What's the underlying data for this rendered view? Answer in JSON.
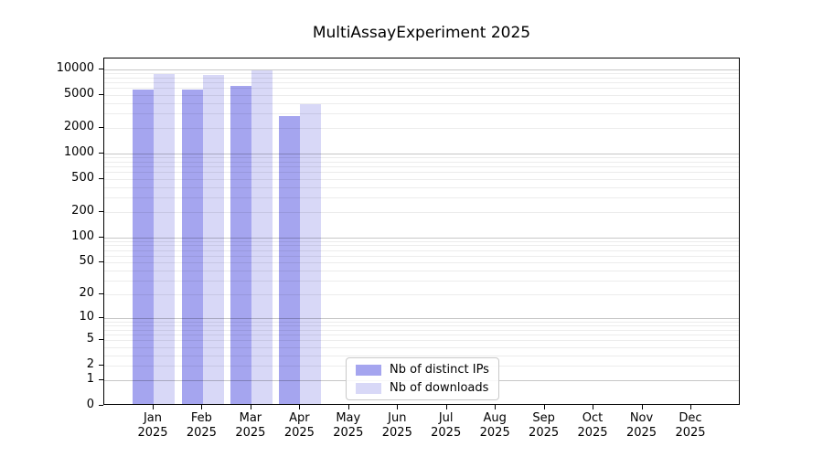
{
  "chart_data": {
    "type": "bar",
    "title": "MultiAssayExperiment 2025",
    "categories": [
      "Jan",
      "Feb",
      "Mar",
      "Apr",
      "May",
      "Jun",
      "Jul",
      "Aug",
      "Sep",
      "Oct",
      "Nov",
      "Dec"
    ],
    "x_tick_second_line": "2025",
    "series": [
      {
        "name": "Nb of distinct IPs",
        "color": "#a5a5ef",
        "values": [
          5500,
          5500,
          6100,
          2650,
          null,
          null,
          null,
          null,
          null,
          null,
          null,
          null
        ]
      },
      {
        "name": "Nb of downloads",
        "color": "#d8d8f7",
        "values": [
          8300,
          8100,
          9400,
          3700,
          null,
          null,
          null,
          null,
          null,
          null,
          null,
          null
        ]
      }
    ],
    "y_axis": {
      "ticks": [
        10000,
        5000,
        2000,
        1000,
        500,
        200,
        100,
        50,
        20,
        10,
        5,
        2,
        1,
        0
      ],
      "scale": "log10(value+1)",
      "range": [
        0,
        10000
      ]
    },
    "legend": {
      "entries": [
        "Nb of distinct IPs",
        "Nb of downloads"
      ],
      "position": "lower-center"
    },
    "grid": "major gray at powers of 10, faint minors at 2-9 per decade, drawn over bars"
  }
}
